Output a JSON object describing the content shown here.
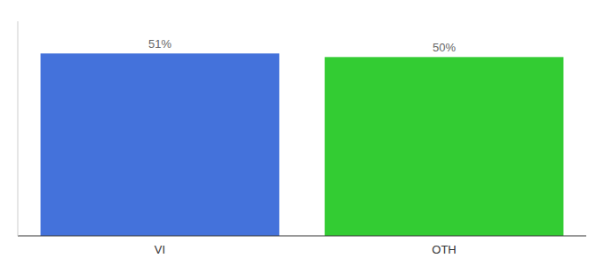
{
  "chart_data": {
    "type": "bar",
    "categories": [
      "VI",
      "OTH"
    ],
    "values": [
      51,
      50
    ],
    "value_labels": [
      "51%",
      "50%"
    ],
    "colors": [
      "#4472db",
      "#33cc33"
    ],
    "ylim": [
      0,
      60
    ],
    "data_labels": true,
    "tick_labels": "x"
  }
}
